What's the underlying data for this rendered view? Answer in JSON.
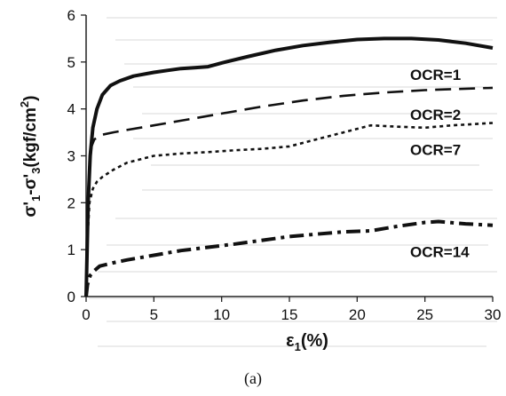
{
  "caption": "(a)",
  "chart_data": {
    "type": "line",
    "title": "",
    "xlabel": "ε1(%)",
    "ylabel": "σ'1-σ'3(kgf/cm2)",
    "xlim": [
      0,
      30
    ],
    "ylim": [
      0,
      6
    ],
    "x_ticks": [
      "0",
      "5",
      "10",
      "15",
      "20",
      "25",
      "30"
    ],
    "y_ticks": [
      "0",
      "1",
      "2",
      "3",
      "4",
      "5",
      "6"
    ],
    "grid": false,
    "legend": "labels placed at right end of each curve",
    "series": [
      {
        "name": "OCR=1",
        "style": "solid",
        "x": [
          0,
          0.15,
          0.3,
          0.5,
          0.8,
          1.2,
          1.8,
          2.5,
          3.5,
          5,
          6,
          7,
          8,
          9,
          10,
          12,
          14,
          16,
          18,
          20,
          22,
          24,
          26,
          28,
          30
        ],
        "y": [
          0,
          2.0,
          3.0,
          3.6,
          4.0,
          4.3,
          4.5,
          4.6,
          4.7,
          4.78,
          4.82,
          4.86,
          4.88,
          4.9,
          4.98,
          5.12,
          5.25,
          5.35,
          5.42,
          5.48,
          5.5,
          5.5,
          5.47,
          5.4,
          5.3
        ]
      },
      {
        "name": "OCR=2",
        "style": "dashed",
        "x": [
          0,
          0.1,
          0.25,
          0.4,
          0.6,
          0.9,
          1.2,
          2,
          3,
          5,
          7,
          10,
          13,
          16,
          19,
          22,
          25,
          28,
          30
        ],
        "y": [
          0,
          1.8,
          2.8,
          3.2,
          3.35,
          3.4,
          3.45,
          3.5,
          3.55,
          3.65,
          3.75,
          3.9,
          4.05,
          4.18,
          4.28,
          4.35,
          4.4,
          4.43,
          4.45
        ]
      },
      {
        "name": "OCR=7",
        "style": "dotted",
        "x": [
          0,
          0.1,
          0.25,
          0.5,
          0.8,
          1.2,
          2,
          3,
          5,
          7,
          9,
          11,
          13,
          15,
          17,
          19,
          21,
          23,
          25,
          27,
          30
        ],
        "y": [
          0,
          1.2,
          2.0,
          2.3,
          2.45,
          2.55,
          2.7,
          2.85,
          3.0,
          3.05,
          3.08,
          3.12,
          3.15,
          3.2,
          3.35,
          3.5,
          3.65,
          3.62,
          3.6,
          3.65,
          3.7
        ]
      },
      {
        "name": "OCR=14",
        "style": "dash-dot",
        "x": [
          0,
          0.1,
          0.3,
          0.6,
          1,
          2,
          3,
          5,
          7,
          9,
          11,
          13,
          15,
          17,
          19,
          21,
          23,
          25,
          26,
          28,
          30
        ],
        "y": [
          0,
          0.25,
          0.45,
          0.55,
          0.65,
          0.72,
          0.78,
          0.88,
          0.98,
          1.05,
          1.12,
          1.2,
          1.28,
          1.33,
          1.38,
          1.4,
          1.5,
          1.58,
          1.6,
          1.55,
          1.52
        ]
      }
    ],
    "colors": {
      "line": "#111111",
      "axis": "#222222"
    }
  }
}
